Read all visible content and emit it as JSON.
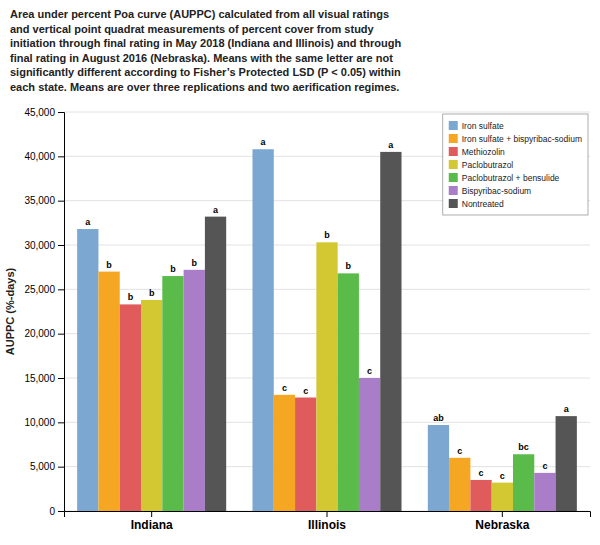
{
  "chart_data": {
    "type": "bar",
    "title": "Area under percent Poa curve (AUPPC) calculated from all visual ratings\nand vertical point quadrat measurements of percent cover from study\ninitiation through final rating in May 2018 (Indiana and Illinois) and through\nfinal rating in August 2016 (Nebraska). Means with the same letter are not\nsignificantly different according to Fisher’s Protected LSD (P < 0.05) within\neach state. Means are over three replications and two aerification regimes.",
    "categories": [
      "Indiana",
      "Illinois",
      "Nebraska"
    ],
    "series": [
      {
        "name": "Iron sulfate",
        "color": "#7BA7D0",
        "values": [
          31800,
          40800,
          9700
        ],
        "letters": [
          "a",
          "a",
          "ab"
        ]
      },
      {
        "name": "Iron sulfate + bispyribac-sodium",
        "color": "#F5A623",
        "values": [
          27000,
          13100,
          6000
        ],
        "letters": [
          "b",
          "c",
          "c"
        ]
      },
      {
        "name": "Methiozolin",
        "color": "#E05C5C",
        "values": [
          23300,
          12800,
          3500
        ],
        "letters": [
          "b",
          "c",
          "c"
        ]
      },
      {
        "name": "Paclobutrazol",
        "color": "#D4C832",
        "values": [
          23800,
          30300,
          3200
        ],
        "letters": [
          "b",
          "b",
          "c"
        ]
      },
      {
        "name": "Paclobutrazol + bensulide",
        "color": "#5BBB4A",
        "values": [
          26500,
          26800,
          6400
        ],
        "letters": [
          "b",
          "b",
          "bc"
        ]
      },
      {
        "name": "Bispyribac-sodium",
        "color": "#A97DC8",
        "values": [
          27200,
          15000,
          4300
        ],
        "letters": [
          "b",
          "c",
          "c"
        ]
      },
      {
        "name": "Nontreated",
        "color": "#555555",
        "values": [
          33200,
          40500,
          10700
        ],
        "letters": [
          "a",
          "a",
          "a"
        ]
      }
    ],
    "ylabel": "AUPPC (%-days)",
    "ylim": [
      0,
      45000
    ],
    "yticks": [
      0,
      {
        "value": 5000,
        "label": "5,000"
      },
      {
        "value": 10000,
        "label": "10,000"
      },
      {
        "value": 15000,
        "label": "15,000"
      },
      {
        "value": 20000,
        "label": "20,000"
      },
      {
        "value": 25000,
        "label": "25,000"
      },
      {
        "value": 30000,
        "label": "30,000"
      },
      {
        "value": 35000,
        "label": "35,000"
      },
      {
        "value": 40000,
        "label": "40,000"
      },
      {
        "value": 45000,
        "label": "45,000"
      }
    ],
    "grid": true,
    "legend": "upper right"
  }
}
